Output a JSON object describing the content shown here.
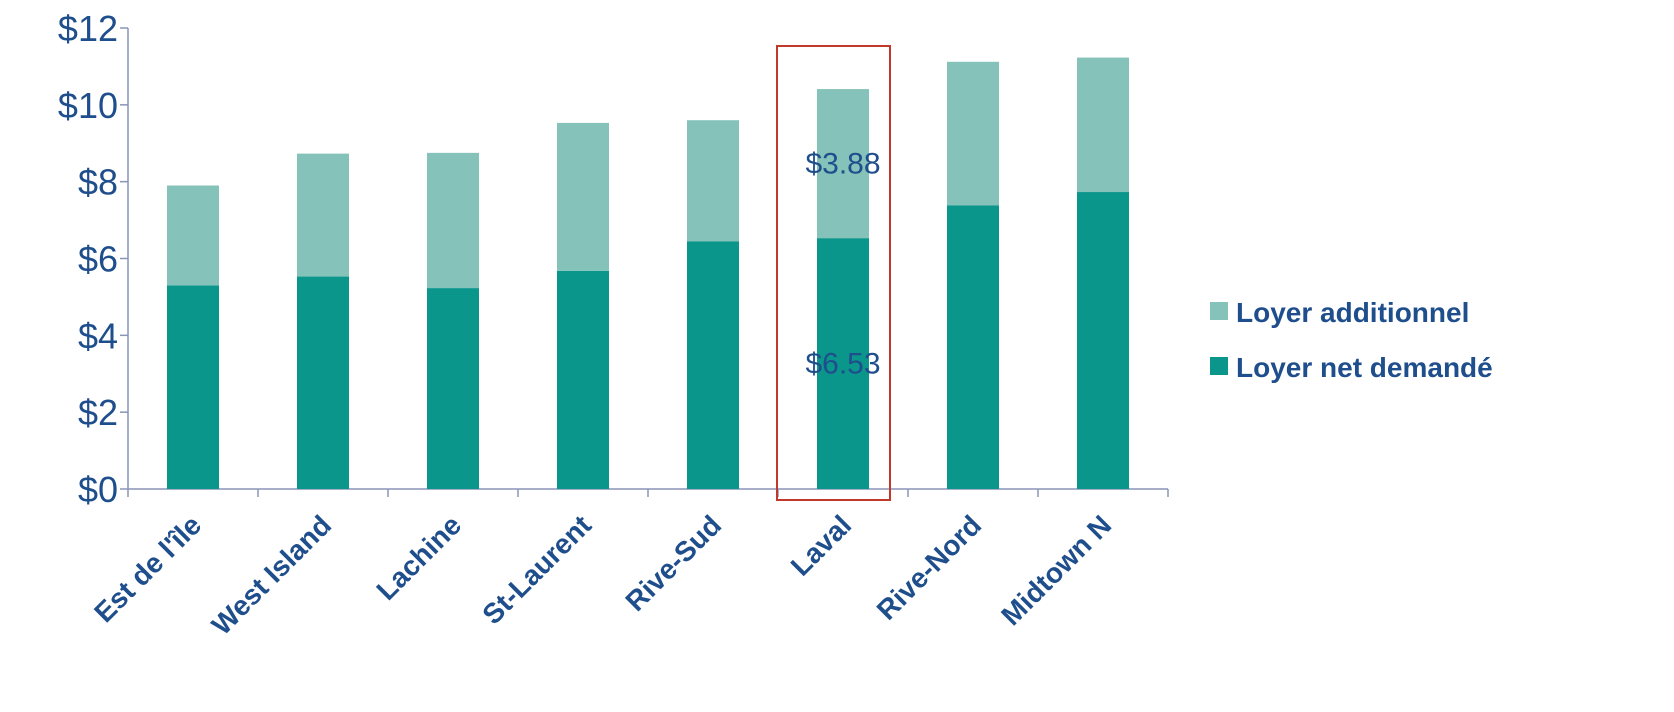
{
  "chart_data": {
    "type": "bar",
    "stacked": true,
    "categories": [
      "Est de l'île",
      "West Island",
      "Lachine",
      "St-Laurent",
      "Rive-Sud",
      "Laval",
      "Rive-Nord",
      "Midtown N"
    ],
    "series": [
      {
        "name": "Loyer net demandé",
        "color": "#0a968a",
        "values": [
          5.3,
          5.53,
          5.23,
          5.68,
          6.45,
          6.53,
          7.38,
          7.73
        ]
      },
      {
        "name": "Loyer additionnel",
        "color": "#85c2b9",
        "values": [
          2.6,
          3.2,
          3.52,
          3.85,
          3.15,
          3.88,
          3.74,
          3.5
        ]
      }
    ],
    "ylim": [
      0,
      12
    ],
    "yticks": [
      "$0",
      "$2",
      "$4",
      "$6",
      "$8",
      "$10",
      "$12"
    ],
    "ytick_values": [
      0,
      2,
      4,
      6,
      8,
      10,
      12
    ],
    "data_labels": [
      {
        "category": "Laval",
        "series": "Loyer additionnel",
        "text": "$3.88"
      },
      {
        "category": "Laval",
        "series": "Loyer net demandé",
        "text": "$6.53"
      }
    ],
    "highlight": {
      "category": "Laval",
      "color": "#c0392b"
    },
    "legend": {
      "placement": "right",
      "entries": [
        "Loyer additionnel",
        "Loyer net demandé"
      ]
    },
    "title": "",
    "xlabel": "",
    "ylabel": "",
    "grid": false
  }
}
